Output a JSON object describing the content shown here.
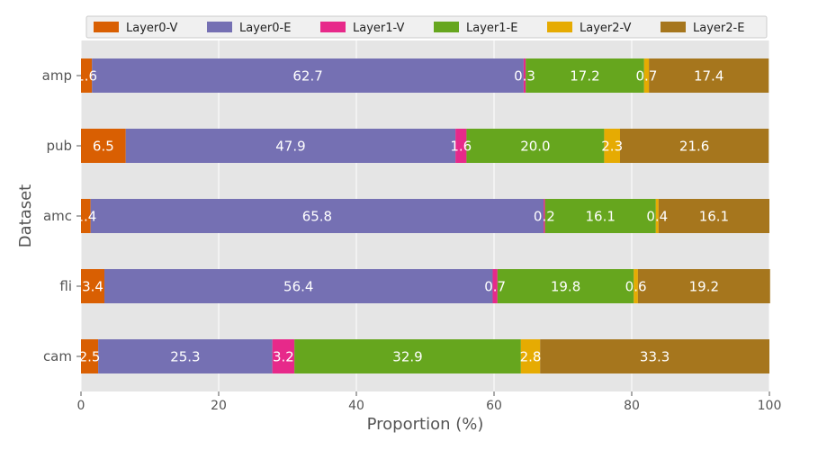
{
  "chart_data": {
    "type": "bar",
    "orientation": "horizontal",
    "stacked": true,
    "xlabel": "Proportion (%)",
    "ylabel": "Dataset",
    "xlim": [
      0,
      100
    ],
    "xticks": [
      0,
      20,
      40,
      60,
      80,
      100
    ],
    "grid": true,
    "legend_position": "top",
    "categories": [
      "amp",
      "pub",
      "amc",
      "fli",
      "cam"
    ],
    "series": [
      {
        "name": "Layer0-V",
        "color": "#d95f02",
        "values": [
          1.6,
          6.5,
          1.4,
          3.4,
          2.5
        ]
      },
      {
        "name": "Layer0-E",
        "color": "#7570b3",
        "values": [
          62.7,
          47.9,
          65.8,
          56.4,
          25.3
        ]
      },
      {
        "name": "Layer1-V",
        "color": "#e7298a",
        "values": [
          0.3,
          1.6,
          0.2,
          0.7,
          3.2
        ]
      },
      {
        "name": "Layer1-E",
        "color": "#66a61e",
        "values": [
          17.2,
          20.0,
          16.1,
          19.8,
          32.9
        ]
      },
      {
        "name": "Layer2-V",
        "color": "#e6ab02",
        "values": [
          0.7,
          2.3,
          0.4,
          0.6,
          2.8
        ]
      },
      {
        "name": "Layer2-E",
        "color": "#a6761d",
        "values": [
          17.4,
          21.6,
          16.1,
          19.2,
          33.3
        ]
      }
    ],
    "data_labels": [
      [
        "1.6",
        "62.7",
        "0.3",
        "17.2",
        "0.7",
        "17.4"
      ],
      [
        "6.5",
        "47.9",
        "1.6",
        "20.0",
        "2.3",
        "21.6"
      ],
      [
        "1.4",
        "65.8",
        "0.2",
        "16.1",
        "0.4",
        "16.1"
      ],
      [
        "3.4",
        "56.4",
        "0.7",
        "19.8",
        "0.6",
        "19.2"
      ],
      [
        "2.5",
        "25.3",
        "3.2",
        "32.9",
        "2.8",
        "33.3"
      ]
    ]
  }
}
